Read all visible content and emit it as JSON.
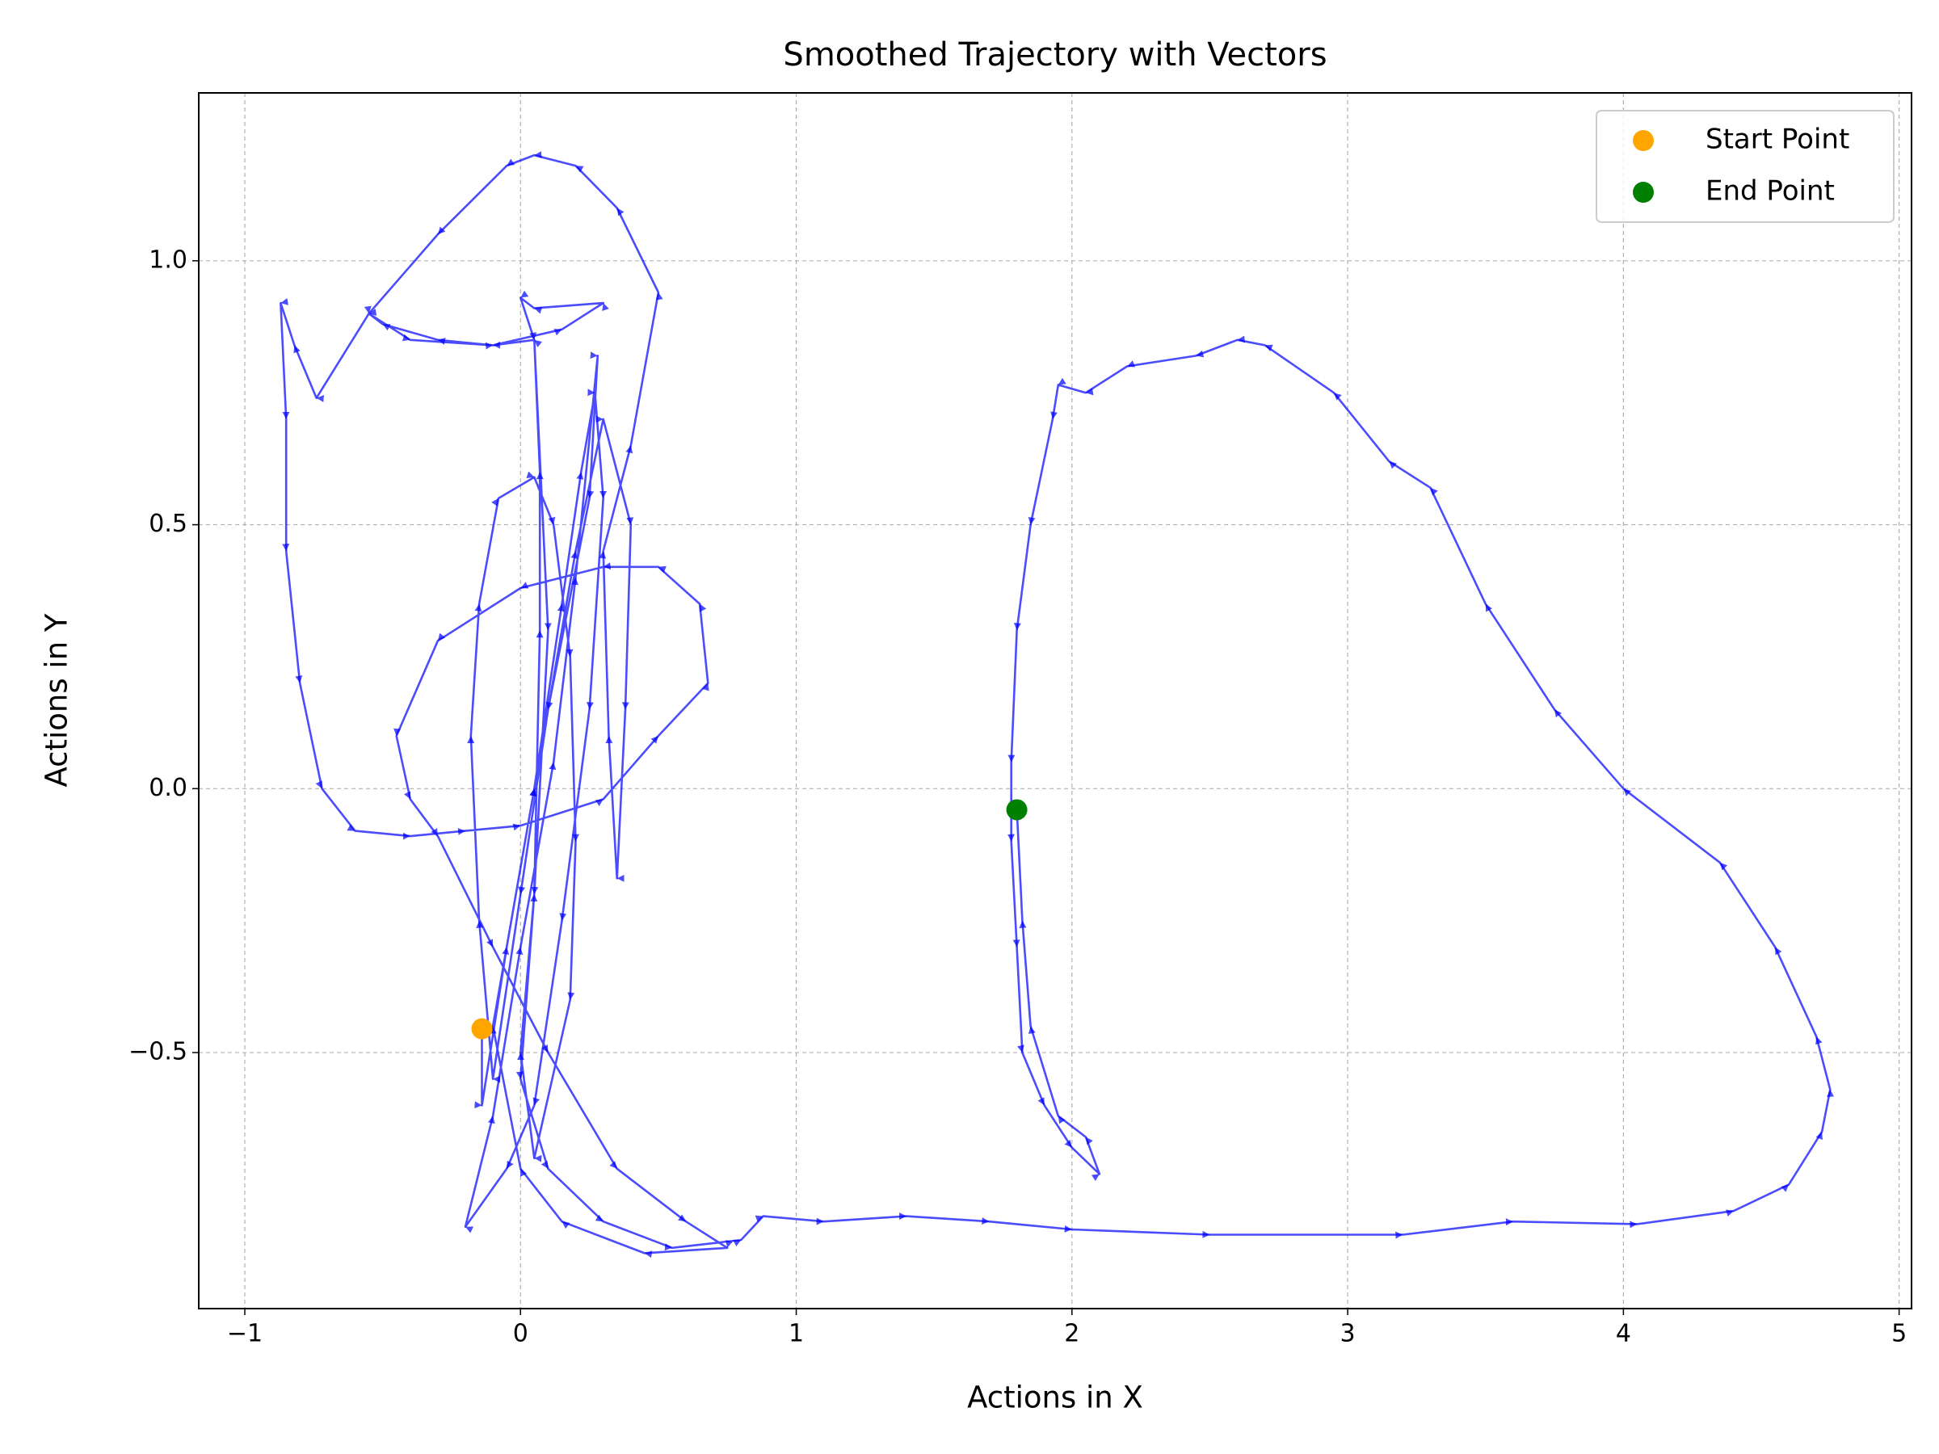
{
  "chart_data": {
    "type": "line",
    "title": "Smoothed Trajectory with Vectors",
    "x_label": "Actions in X",
    "y_label": "Actions in Y",
    "color": "#0000ff",
    "grid": true,
    "legend": "upper right",
    "xlim": [
      -1.167,
      5.045
    ],
    "ylim": [
      -0.985,
      1.318
    ],
    "xticks": [
      {
        "value": -1,
        "label": "−1"
      },
      0,
      1,
      2,
      3,
      4,
      5
    ],
    "yticks": [
      {
        "value": -0.5,
        "label": "−0.5"
      },
      {
        "value": 0,
        "label": "0.0"
      },
      0.5,
      {
        "value": 1,
        "label": "1.0"
      }
    ],
    "x": [
      -0.14,
      -0.14,
      -0.05,
      0.05,
      0.15,
      0.22,
      0.27,
      0.3,
      0.25,
      0.15,
      0.05,
      -0.05,
      -0.2,
      -0.1,
      0.0,
      0.12,
      0.2,
      0.28,
      0.25,
      0.1,
      0.0,
      -0.1,
      -0.15,
      -0.18,
      -0.15,
      -0.08,
      0.05,
      0.12,
      0.18,
      0.2,
      0.18,
      0.05,
      0.0,
      0.05,
      0.07,
      0.07,
      0.05,
      -0.1,
      -0.3,
      -0.5,
      -0.55,
      -0.74,
      -0.82,
      -0.87,
      -0.85,
      -0.85,
      -0.8,
      -0.72,
      -0.6,
      -0.4,
      -0.2,
      0.0,
      0.3,
      0.5,
      0.68,
      0.65,
      0.5,
      0.3,
      0.0,
      -0.3,
      -0.45,
      -0.4,
      -0.3,
      -0.1,
      0.1,
      0.35,
      0.6,
      0.75,
      0.45,
      0.15,
      0.0,
      -0.1,
      0.05,
      0.2,
      0.3,
      0.4,
      0.38,
      0.35,
      0.32,
      0.3,
      0.4,
      0.5,
      0.35,
      0.2,
      0.05,
      -0.05,
      -0.3,
      -0.55,
      -0.4,
      -0.1,
      0.15,
      0.3,
      0.05,
      0.0,
      0.05,
      0.1,
      0.05,
      0.0,
      0.1,
      0.3,
      0.55,
      0.8,
      0.88,
      1.1,
      1.4,
      1.7,
      2.0,
      2.5,
      3.2,
      3.6,
      4.05,
      4.4,
      4.6,
      4.72,
      4.75,
      4.7,
      4.55,
      4.35,
      4.0,
      3.75,
      3.5,
      3.3,
      3.15,
      2.95,
      2.7,
      2.6,
      2.45,
      2.2,
      2.05,
      1.95,
      1.93,
      1.85,
      1.8,
      1.78,
      1.78,
      1.8,
      1.82,
      1.9,
      2.0,
      2.1,
      2.05,
      1.95,
      1.85,
      1.82,
      1.8
    ],
    "values": [
      -0.455,
      -0.6,
      -0.3,
      0.0,
      0.35,
      0.6,
      0.75,
      0.55,
      0.15,
      -0.25,
      -0.6,
      -0.72,
      -0.83,
      -0.62,
      -0.3,
      0.05,
      0.4,
      0.82,
      0.55,
      0.15,
      -0.2,
      -0.55,
      -0.25,
      0.1,
      0.35,
      0.55,
      0.59,
      0.5,
      0.25,
      -0.1,
      -0.4,
      -0.7,
      -0.5,
      -0.2,
      0.3,
      0.6,
      0.85,
      0.84,
      0.85,
      0.88,
      0.9,
      0.74,
      0.84,
      0.92,
      0.7,
      0.45,
      0.2,
      0.0,
      -0.08,
      -0.09,
      -0.08,
      -0.07,
      -0.02,
      0.1,
      0.2,
      0.35,
      0.42,
      0.42,
      0.38,
      0.28,
      0.1,
      -0.02,
      -0.09,
      -0.3,
      -0.5,
      -0.72,
      -0.82,
      -0.87,
      -0.88,
      -0.82,
      -0.72,
      -0.45,
      0.0,
      0.45,
      0.7,
      0.5,
      0.15,
      -0.17,
      0.1,
      0.45,
      0.65,
      0.94,
      1.1,
      1.18,
      1.2,
      1.18,
      1.05,
      0.9,
      0.85,
      0.84,
      0.87,
      0.92,
      0.91,
      0.93,
      0.85,
      0.3,
      -0.2,
      -0.55,
      -0.72,
      -0.82,
      -0.87,
      -0.855,
      -0.81,
      -0.82,
      -0.81,
      -0.82,
      -0.835,
      -0.845,
      -0.845,
      -0.82,
      -0.825,
      -0.8,
      -0.75,
      -0.65,
      -0.57,
      -0.47,
      -0.3,
      -0.14,
      0.0,
      0.15,
      0.35,
      0.57,
      0.62,
      0.75,
      0.84,
      0.85,
      0.82,
      0.8,
      0.75,
      0.765,
      0.7,
      0.5,
      0.3,
      0.05,
      -0.1,
      -0.3,
      -0.5,
      -0.6,
      -0.68,
      -0.73,
      -0.66,
      -0.62,
      -0.45,
      -0.25,
      -0.04
    ],
    "points": [
      {
        "name": "Start Point",
        "color": "#ffa500",
        "x": -0.14,
        "y": -0.455
      },
      {
        "name": "End Point",
        "color": "#008000",
        "x": 1.8,
        "y": -0.04
      }
    ]
  }
}
